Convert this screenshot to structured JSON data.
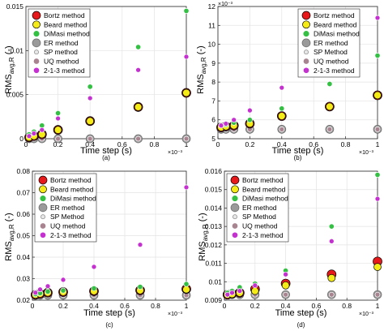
{
  "chart_data": [
    {
      "type": "scatter",
      "panel_label": "(a)",
      "xlabel": "Time step (s)",
      "ylabel_main": "RMS",
      "ylabel_sub": "avg,R",
      "ylabel_unit": " (-)",
      "x_exponent_label": "×10⁻³",
      "y_exponent_label": "",
      "xlim": [
        0,
        1.0
      ],
      "ylim": [
        0,
        0.015
      ],
      "x_ticks": [
        0,
        0.2,
        0.4,
        0.6,
        0.8,
        1.0
      ],
      "x_tick_labels": [
        "0",
        "0.2",
        "0.4",
        "0.6",
        "0.8",
        "1"
      ],
      "y_ticks": [
        0,
        0.005,
        0.01,
        0.015
      ],
      "y_tick_labels": [
        "0",
        "0.005",
        "0.01",
        "0.015"
      ],
      "grid": true,
      "legend_position": "top-left",
      "legend_labels": [
        "Bortz method",
        "Beard method",
        "DiMasi method",
        "ER method",
        "SP method",
        "UQ method",
        "2-1-3 method"
      ],
      "x": [
        0.02,
        0.05,
        0.1,
        0.2,
        0.4,
        0.7,
        1.0
      ],
      "series": [
        {
          "name": "Bortz method",
          "values": [
            0.00015,
            0.0003,
            0.0005,
            0.001,
            0.002,
            0.0036,
            0.0052
          ]
        },
        {
          "name": "Beard method",
          "values": [
            0.00015,
            0.0003,
            0.0005,
            0.001,
            0.002,
            0.0036,
            0.0052
          ]
        },
        {
          "name": "DiMasi method",
          "values": [
            0.0005,
            0.0008,
            0.0015,
            0.0029,
            0.0059,
            0.0104,
            0.0145
          ]
        },
        {
          "name": "ER method",
          "values": [
            0.0,
            0.0,
            0.0,
            0.0,
            0.0,
            0.0,
            0.0
          ]
        },
        {
          "name": "SP method",
          "values": [
            0.0,
            0.0,
            0.0,
            0.0,
            0.0,
            0.0,
            0.0
          ]
        },
        {
          "name": "UQ method",
          "values": [
            0.0,
            0.0,
            0.0,
            0.0,
            0.0,
            0.0,
            0.0
          ]
        },
        {
          "name": "2-1-3 method",
          "values": [
            0.0003,
            0.0006,
            0.001,
            0.0023,
            0.0046,
            0.0078,
            0.0093
          ]
        }
      ]
    },
    {
      "type": "scatter",
      "panel_label": "(b)",
      "xlabel": "Time step (s)",
      "ylabel_main": "RMS",
      "ylabel_sub": "avg,R",
      "ylabel_unit": " (-)",
      "x_exponent_label": "×10⁻³",
      "y_exponent_label": "×10⁻³",
      "xlim": [
        0,
        1.0
      ],
      "ylim": [
        5,
        12
      ],
      "x_ticks": [
        0,
        0.2,
        0.4,
        0.6,
        0.8,
        1.0
      ],
      "x_tick_labels": [
        "0",
        "0.2",
        "0.4",
        "0.6",
        "0.8",
        "1"
      ],
      "y_ticks": [
        5,
        6,
        7,
        8,
        9,
        10,
        11,
        12
      ],
      "y_tick_labels": [
        "5",
        "6",
        "7",
        "8",
        "9",
        "10",
        "11",
        "12"
      ],
      "grid": true,
      "legend_position": "top-right",
      "legend_labels": [
        "Bortz method",
        "Beard method",
        "DiMasi method",
        "ER method",
        "SP Method",
        "UQ method",
        "2-1-3 method"
      ],
      "x": [
        0.02,
        0.05,
        0.1,
        0.2,
        0.4,
        0.7,
        1.0
      ],
      "series": [
        {
          "name": "Bortz method",
          "values": [
            5.6,
            5.65,
            5.7,
            5.8,
            6.2,
            6.7,
            7.3
          ]
        },
        {
          "name": "Beard method",
          "values": [
            5.6,
            5.65,
            5.7,
            5.8,
            6.2,
            6.7,
            7.3
          ]
        },
        {
          "name": "DiMasi method",
          "values": [
            5.7,
            5.75,
            5.85,
            6.0,
            6.6,
            7.9,
            9.4
          ]
        },
        {
          "name": "ER method",
          "values": [
            5.5,
            5.5,
            5.5,
            5.5,
            5.5,
            5.5,
            5.5
          ]
        },
        {
          "name": "SP Method",
          "values": [
            5.5,
            5.5,
            5.5,
            5.5,
            5.5,
            5.5,
            5.5
          ]
        },
        {
          "name": "UQ method",
          "values": [
            5.5,
            5.5,
            5.5,
            5.5,
            5.5,
            5.5,
            5.5
          ]
        },
        {
          "name": "2-1-3 method",
          "values": [
            5.7,
            5.8,
            6.0,
            6.5,
            7.7,
            9.5,
            11.4
          ]
        }
      ]
    },
    {
      "type": "scatter",
      "panel_label": "(c)",
      "xlabel": "Time step (s)",
      "ylabel_main": "RMS",
      "ylabel_sub": "avg,R",
      "ylabel_unit": " (-)",
      "x_exponent_label": "×10⁻³",
      "y_exponent_label": "",
      "xlim": [
        0,
        1.0
      ],
      "ylim": [
        0.02,
        0.08
      ],
      "x_ticks": [
        0,
        0.2,
        0.4,
        0.6,
        0.8,
        1.0
      ],
      "x_tick_labels": [
        "0",
        "0.2",
        "0.4",
        "0.6",
        "0.8",
        "1"
      ],
      "y_ticks": [
        0.02,
        0.03,
        0.04,
        0.05,
        0.06,
        0.07,
        0.08
      ],
      "y_tick_labels": [
        "0.02",
        "0.03",
        "0.04",
        "0.05",
        "0.06",
        "0.07",
        "0.08"
      ],
      "grid": true,
      "legend_position": "top-left",
      "legend_labels": [
        "Bortz method",
        "Beard method",
        "DiMasi method",
        "ER method",
        "SP Method",
        "UQ method",
        "2-1-3 method"
      ],
      "x": [
        0.02,
        0.05,
        0.1,
        0.2,
        0.4,
        0.7,
        1.0
      ],
      "series": [
        {
          "name": "Bortz method",
          "values": [
            0.0225,
            0.023,
            0.0235,
            0.0238,
            0.0242,
            0.0246,
            0.0252
          ]
        },
        {
          "name": "Beard method",
          "values": [
            0.0225,
            0.023,
            0.0235,
            0.0238,
            0.0242,
            0.0246,
            0.025
          ]
        },
        {
          "name": "DiMasi method",
          "values": [
            0.0228,
            0.0233,
            0.024,
            0.0245,
            0.0255,
            0.0262,
            0.0275
          ]
        },
        {
          "name": "ER method",
          "values": [
            0.0223,
            0.0223,
            0.0223,
            0.0223,
            0.0223,
            0.0223,
            0.0223
          ]
        },
        {
          "name": "SP Method",
          "values": [
            0.0223,
            0.0223,
            0.0223,
            0.0223,
            0.0223,
            0.0223,
            0.0223
          ]
        },
        {
          "name": "UQ method",
          "values": [
            0.0223,
            0.0223,
            0.0223,
            0.0223,
            0.0223,
            0.0223,
            0.0223
          ]
        },
        {
          "name": "2-1-3 method",
          "values": [
            0.0235,
            0.025,
            0.0265,
            0.0295,
            0.0355,
            0.0458,
            0.0725
          ]
        }
      ]
    },
    {
      "type": "scatter",
      "panel_label": "(d)",
      "xlabel": "Time step (s)",
      "ylabel_main": "RMS",
      "ylabel_sub": "avg,R",
      "ylabel_unit": " (-)",
      "x_exponent_label": "×10⁻³",
      "y_exponent_label": "",
      "xlim": [
        0,
        1.0
      ],
      "ylim": [
        0.009,
        0.016
      ],
      "x_ticks": [
        0,
        0.2,
        0.4,
        0.6,
        0.8,
        1.0
      ],
      "x_tick_labels": [
        "0",
        "0.2",
        "0.4",
        "0.6",
        "0.8",
        "1"
      ],
      "y_ticks": [
        0.009,
        0.01,
        0.011,
        0.012,
        0.013,
        0.014,
        0.015,
        0.016
      ],
      "y_tick_labels": [
        "0.009",
        "0.01",
        "0.011",
        "0.012",
        "0.013",
        "0.014",
        "0.015",
        "0.016"
      ],
      "grid": true,
      "legend_position": "top-left",
      "legend_labels": [
        "Bortz method",
        "Beard method",
        "DiMasi method",
        "ER method",
        "SP Method",
        "UQ method",
        "2-1-3 method"
      ],
      "x": [
        0.02,
        0.05,
        0.1,
        0.2,
        0.4,
        0.7,
        1.0
      ],
      "series": [
        {
          "name": "Bortz method",
          "values": [
            0.0093,
            0.00935,
            0.0094,
            0.0096,
            0.0099,
            0.0104,
            0.0111
          ]
        },
        {
          "name": "Beard method",
          "values": [
            0.0093,
            0.00933,
            0.0094,
            0.0095,
            0.0098,
            0.0102,
            0.0108
          ]
        },
        {
          "name": "DiMasi method",
          "values": [
            0.0094,
            0.0095,
            0.0097,
            0.0099,
            0.0106,
            0.013,
            0.0158
          ]
        },
        {
          "name": "ER method",
          "values": [
            0.0093,
            0.0093,
            0.0093,
            0.0093,
            0.0093,
            0.0093,
            0.0093
          ]
        },
        {
          "name": "SP Method",
          "values": [
            0.0093,
            0.0093,
            0.0093,
            0.0093,
            0.0093,
            0.0093,
            0.0093
          ]
        },
        {
          "name": "UQ method",
          "values": [
            0.0093,
            0.0093,
            0.0093,
            0.0093,
            0.0093,
            0.0093,
            0.0093
          ]
        },
        {
          "name": "2-1-3 method",
          "values": [
            0.0093,
            0.0094,
            0.0095,
            0.0098,
            0.0104,
            0.0122,
            0.0145
          ]
        }
      ]
    }
  ],
  "series_style": {
    "Bortz method": {
      "fill": "#e8191a",
      "stroke": "#000000",
      "r": 5.5
    },
    "Beard method": {
      "fill": "#f5ec17",
      "stroke": "#000000",
      "r": 4.5
    },
    "DiMasi method": {
      "fill": "#33c043",
      "stroke": "#ffffff",
      "r": 3.2
    },
    "ER method": {
      "fill": "#9a9a9a",
      "stroke": "#6a6a6a",
      "r": 5.0
    },
    "SP method": {
      "fill": "#e8e8e8",
      "stroke": "#888888",
      "r": 2.6
    },
    "SP Method": {
      "fill": "#e8e8e8",
      "stroke": "#888888",
      "r": 2.6
    },
    "UQ method": {
      "fill": "#a88390",
      "stroke": "#ffffff",
      "r": 3.0
    },
    "2-1-3 method": {
      "fill": "#c531d0",
      "stroke": "#ffffff",
      "r": 3.0
    }
  }
}
